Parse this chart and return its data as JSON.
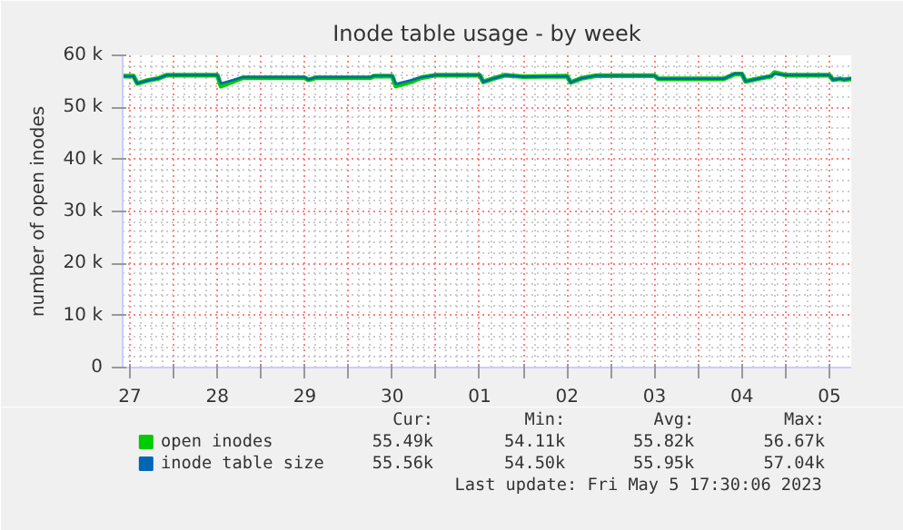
{
  "chart_data": {
    "type": "line",
    "title": "Inode table usage - by week",
    "ylabel": "number of open inodes",
    "x": [
      "2023-04-26T22:00",
      "2023-04-27T01:00",
      "2023-04-27T02:00",
      "2023-04-27T05:00",
      "2023-04-27T08:00",
      "2023-04-27T10:00",
      "2023-04-28T00:00",
      "2023-04-28T01:00",
      "2023-04-28T04:00",
      "2023-04-28T07:00",
      "2023-04-29T00:00",
      "2023-04-29T01:00",
      "2023-04-29T03:00",
      "2023-04-29T18:00",
      "2023-04-29T19:00",
      "2023-04-30T00:00",
      "2023-04-30T01:00",
      "2023-04-30T05:00",
      "2023-04-30T08:00",
      "2023-04-30T12:00",
      "2023-05-01T00:00",
      "2023-05-01T01:00",
      "2023-05-01T04:00",
      "2023-05-01T07:00",
      "2023-05-01T12:00",
      "2023-05-02T00:00",
      "2023-05-02T01:00",
      "2023-05-02T04:00",
      "2023-05-02T08:00",
      "2023-05-03T00:00",
      "2023-05-03T01:00",
      "2023-05-03T19:00",
      "2023-05-03T22:00",
      "2023-05-04T00:00",
      "2023-05-04T01:00",
      "2023-05-04T05:00",
      "2023-05-04T08:00",
      "2023-05-04T09:00",
      "2023-05-04T12:00",
      "2023-05-05T00:00",
      "2023-05-05T01:00",
      "2023-05-05T03:00",
      "2023-05-05T04:00",
      "2023-05-05T06:00"
    ],
    "series": [
      {
        "name": "open inodes",
        "color": "#00cc00",
        "values": [
          56000,
          56000,
          54600,
          55200,
          55600,
          56200,
          56200,
          54100,
          54900,
          55700,
          55700,
          55300,
          55700,
          55700,
          56000,
          56000,
          54100,
          54900,
          55700,
          56200,
          56200,
          54900,
          55600,
          56200,
          55900,
          56000,
          54800,
          55600,
          56100,
          56100,
          55500,
          55500,
          56400,
          56400,
          55000,
          55600,
          56000,
          56700,
          56200,
          56200,
          55300,
          55500,
          55300,
          55500
        ]
      },
      {
        "name": "inode table size",
        "color": "#0066b3",
        "values": [
          56000,
          56000,
          54600,
          55200,
          55600,
          56200,
          56200,
          54600,
          55200,
          55800,
          55800,
          55300,
          55800,
          55800,
          56100,
          56100,
          54500,
          55200,
          55800,
          56200,
          56200,
          54900,
          55600,
          56200,
          55900,
          56000,
          54800,
          55600,
          56100,
          56100,
          55500,
          55500,
          56500,
          56500,
          55000,
          55600,
          56000,
          56500,
          56200,
          56200,
          55300,
          55500,
          55300,
          55600
        ]
      }
    ],
    "xlim": [
      "2023-04-26T22:00",
      "2023-05-05T06:00"
    ],
    "xticks": [
      {
        "value": "2023-04-27",
        "label": "27"
      },
      {
        "value": "2023-04-27T12:00",
        "label": null
      },
      {
        "value": "2023-04-28",
        "label": "28"
      },
      {
        "value": "2023-04-28T12:00",
        "label": null
      },
      {
        "value": "2023-04-29",
        "label": "29"
      },
      {
        "value": "2023-04-29T12:00",
        "label": null
      },
      {
        "value": "2023-04-30",
        "label": "30"
      },
      {
        "value": "2023-04-30T12:00",
        "label": null
      },
      {
        "value": "2023-05-01",
        "label": "01"
      },
      {
        "value": "2023-05-01T12:00",
        "label": null
      },
      {
        "value": "2023-05-02",
        "label": "02"
      },
      {
        "value": "2023-05-02T12:00",
        "label": null
      },
      {
        "value": "2023-05-03",
        "label": "03"
      },
      {
        "value": "2023-05-03T12:00",
        "label": null
      },
      {
        "value": "2023-05-04",
        "label": "04"
      },
      {
        "value": "2023-05-04T12:00",
        "label": null
      },
      {
        "value": "2023-05-05",
        "label": "05"
      }
    ],
    "ylim": [
      0,
      60000
    ],
    "yticks": [
      0,
      {
        "value": 10000,
        "label": "10 k"
      },
      {
        "value": 20000,
        "label": "20 k"
      },
      {
        "value": 30000,
        "label": "30 k"
      },
      {
        "value": 40000,
        "label": "40 k"
      },
      {
        "value": 50000,
        "label": "50 k"
      },
      {
        "value": 60000,
        "label": "60 k"
      }
    ],
    "grid": true,
    "legend": "bottom",
    "marker": "none",
    "line_style": "solid",
    "annotations": [
      "Cur:",
      "Min:",
      "Avg:",
      "Max:",
      "55.49k",
      "54.11k",
      "55.82k",
      "56.67k",
      "55.56k",
      "54.50k",
      "55.95k",
      "57.04k",
      "Last update: Fri May  5 17:30:06 2023"
    ]
  }
}
